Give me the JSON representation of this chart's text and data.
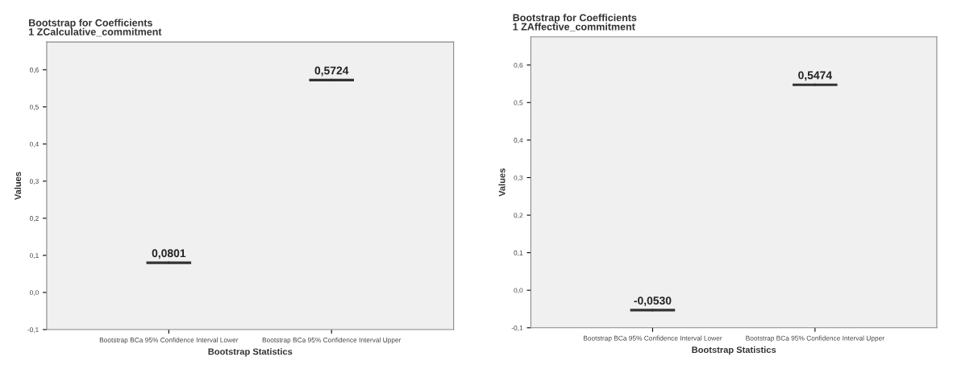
{
  "chart_data": [
    {
      "type": "scatter",
      "title": "Bootstrap for Coefficients",
      "subtitle": "1 ZCalculative_commitment",
      "xlabel": "Bootstrap Statistics",
      "ylabel": "Values",
      "categories": [
        "Bootstrap BCa 95% Confidence Interval Lower",
        "Bootstrap BCa 95% Confidence Interval Upper"
      ],
      "series": [
        {
          "color": "#333333",
          "values": [
            0.0801,
            0.5724
          ]
        }
      ],
      "value_labels": [
        "0,0801",
        "0,5724"
      ],
      "ylim": [
        -0.1,
        0.675
      ],
      "yticks": [
        {
          "value": -0.1,
          "label": "-0,1"
        },
        {
          "value": 0.0,
          "label": "0,0"
        },
        {
          "value": 0.1,
          "label": "0,1"
        },
        {
          "value": 0.2,
          "label": "0,2"
        },
        {
          "value": 0.3,
          "label": "0,3"
        },
        {
          "value": 0.4,
          "label": "0,4"
        },
        {
          "value": 0.5,
          "label": "0,5"
        },
        {
          "value": 0.6,
          "label": "0,6"
        }
      ]
    },
    {
      "type": "scatter",
      "title": "Bootstrap for Coefficients",
      "subtitle": "1 ZAffective_commitment",
      "xlabel": "Bootstrap Statistics",
      "ylabel": "Values",
      "categories": [
        "Bootstrap BCa 95% Confidence Interval Lower",
        "Bootstrap BCa 95% Confidence Interval Upper"
      ],
      "series": [
        {
          "color": "#333333",
          "values": [
            -0.053,
            0.5474
          ]
        }
      ],
      "value_labels": [
        "-0,0530",
        "0,5474"
      ],
      "ylim": [
        -0.1,
        0.675
      ],
      "yticks": [
        {
          "value": -0.1,
          "label": "-0,1"
        },
        {
          "value": 0.0,
          "label": "0,0"
        },
        {
          "value": 0.1,
          "label": "0,1"
        },
        {
          "value": 0.2,
          "label": "0,2"
        },
        {
          "value": 0.3,
          "label": "0,3"
        },
        {
          "value": 0.4,
          "label": "0,4"
        },
        {
          "value": 0.5,
          "label": "0,5"
        },
        {
          "value": 0.6,
          "label": "0,6"
        }
      ]
    }
  ]
}
